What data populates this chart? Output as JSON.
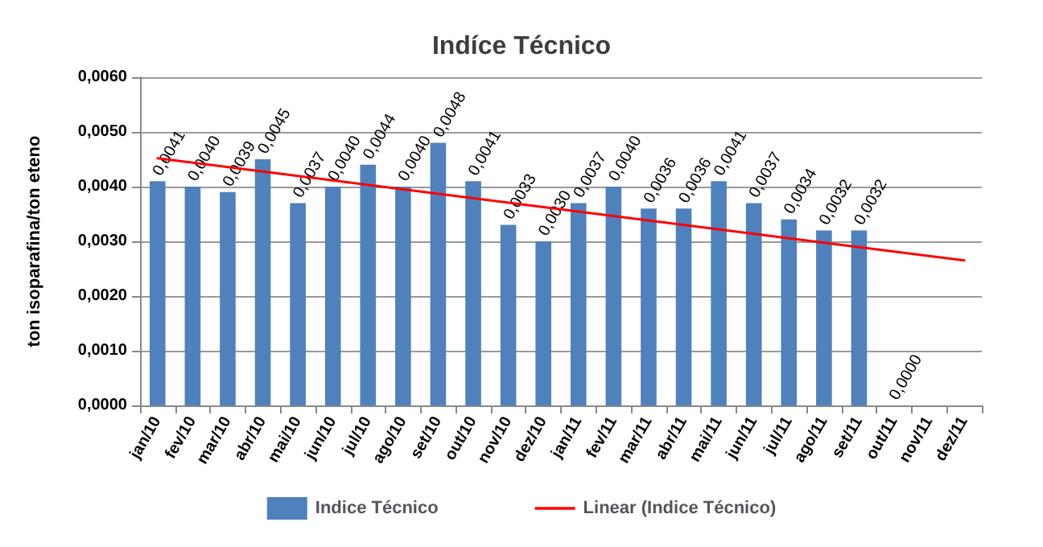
{
  "chart_data": {
    "type": "bar",
    "title": "Indíce Técnico",
    "ylabel": "ton isoparafina/ton eteno",
    "categories": [
      "jan/10",
      "fev/10",
      "mar/10",
      "abr/10",
      "mai/10",
      "jun/10",
      "jul/10",
      "ago/10",
      "set/10",
      "out/10",
      "nov/10",
      "dez/10",
      "jan/11",
      "fev/11",
      "mar/11",
      "abr/11",
      "mai/11",
      "jun/11",
      "jul/11",
      "ago/11",
      "set/11",
      "out/11",
      "nov/11",
      "dez/11"
    ],
    "series": [
      {
        "name": "Indice Técnico",
        "color": "#4f81bd",
        "values": [
          0.0041,
          0.004,
          0.0039,
          0.0045,
          0.0037,
          0.004,
          0.0044,
          0.004,
          0.0048,
          0.0041,
          0.0033,
          0.003,
          0.0037,
          0.004,
          0.0036,
          0.0036,
          0.0041,
          0.0037,
          0.0034,
          0.0032,
          0.0032,
          0,
          null,
          null
        ],
        "value_labels": [
          "0,0041",
          "0,0040",
          "0,0039",
          "0,0045",
          "0,0037",
          "0,0040",
          "0,0044",
          "0,0040",
          "0,0048",
          "0,0041",
          "0,0033",
          "0,0030",
          "0,0037",
          "0,0040",
          "0,0036",
          "0,0036",
          "0,0041",
          "0,0037",
          "0,0034",
          "0,0032",
          "0,0032",
          "0,0000",
          null,
          null
        ]
      },
      {
        "name": "Linear (Indice Técnico)",
        "type": "line",
        "color": "#ff0000",
        "line_style": "solid",
        "marker": "none",
        "values": [
          0.00452,
          null,
          null,
          null,
          null,
          null,
          null,
          null,
          null,
          null,
          null,
          null,
          null,
          null,
          null,
          null,
          null,
          null,
          null,
          null,
          null,
          null,
          null,
          0.00265
        ]
      }
    ],
    "ylim": [
      0,
      0.006
    ],
    "yticks": [
      {
        "value": 0,
        "label": "0,0000"
      },
      {
        "value": 0.001,
        "label": "0,0010"
      },
      {
        "value": 0.002,
        "label": "0,0020"
      },
      {
        "value": 0.003,
        "label": "0,0030"
      },
      {
        "value": 0.004,
        "label": "0,0040"
      },
      {
        "value": 0.005,
        "label": "0,0050"
      },
      {
        "value": 0.006,
        "label": "0,0060"
      }
    ],
    "grid": "y",
    "legend": "bottom"
  }
}
